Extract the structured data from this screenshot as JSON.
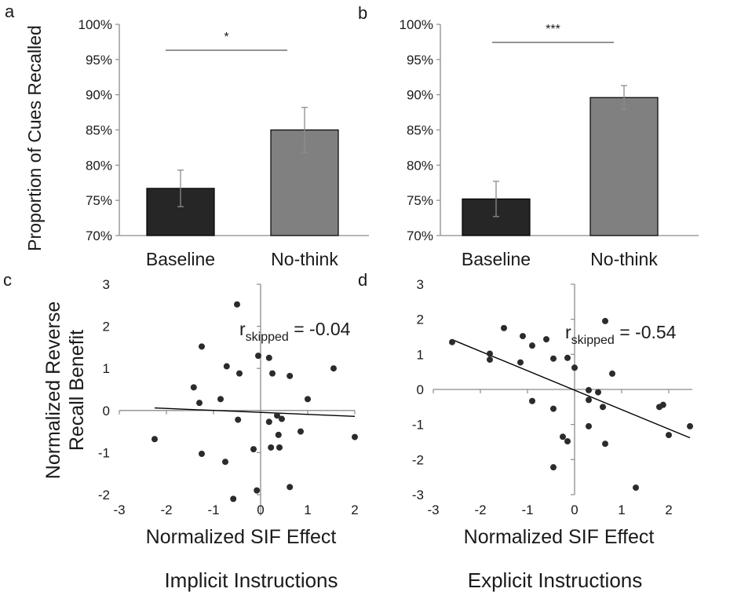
{
  "figure": {
    "ylabel_top": "Proportion of Cues Recalled",
    "ylabel_bottom_line1": "Normalized Reverse",
    "ylabel_bottom_line2": "Recall Benefit",
    "caption_left": "Implicit Instructions",
    "caption_right": "Explicit Instructions"
  },
  "chart_data": [
    {
      "panel": "a",
      "type": "bar",
      "categories": [
        "Baseline",
        "No-think"
      ],
      "values": [
        76.7,
        85.0
      ],
      "errors": [
        2.6,
        3.2
      ],
      "bar_colors": [
        "#262626",
        "#808080"
      ],
      "ylim": [
        70,
        100
      ],
      "yticks": [
        "70%",
        "75%",
        "80%",
        "85%",
        "90%",
        "95%",
        "100%"
      ],
      "ytick_values": [
        70,
        75,
        80,
        85,
        90,
        95,
        100
      ],
      "significance": "*",
      "ylabel": "Proportion of Cues Recalled"
    },
    {
      "panel": "b",
      "type": "bar",
      "categories": [
        "Baseline",
        "No-think"
      ],
      "values": [
        75.2,
        89.6
      ],
      "errors": [
        2.5,
        1.7
      ],
      "bar_colors": [
        "#262626",
        "#808080"
      ],
      "ylim": [
        70,
        100
      ],
      "yticks": [
        "70%",
        "75%",
        "80%",
        "85%",
        "90%",
        "95%",
        "100%"
      ],
      "ytick_values": [
        70,
        75,
        80,
        85,
        90,
        95,
        100
      ],
      "significance": "***"
    },
    {
      "panel": "c",
      "type": "scatter",
      "xlabel": "Normalized SIF Effect",
      "ylabel": "Normalized Reverse Recall Benefit",
      "xlim": [
        -3,
        2
      ],
      "ylim": [
        -2.5,
        3
      ],
      "xticks": [
        "-3",
        "-2",
        "-1",
        "0",
        "1",
        "2"
      ],
      "xtick_values": [
        -3,
        -2,
        -1,
        0,
        1,
        2
      ],
      "yticks": [
        "-2",
        "-1",
        "0",
        "1",
        "2",
        "3"
      ],
      "ytick_values": [
        -2,
        -1,
        0,
        1,
        2,
        3
      ],
      "stat_r": "r",
      "stat_sub": "skipped",
      "stat_value": " = -0.04",
      "fit": {
        "x": [
          -2.25,
          2.0
        ],
        "y": [
          0.06,
          -0.14
        ]
      },
      "points": [
        [
          -0.5,
          2.52
        ],
        [
          -1.25,
          1.52
        ],
        [
          -0.05,
          1.3
        ],
        [
          0.18,
          1.25
        ],
        [
          -0.72,
          1.05
        ],
        [
          -0.45,
          0.88
        ],
        [
          0.25,
          0.88
        ],
        [
          0.62,
          0.82
        ],
        [
          1.55,
          1.0
        ],
        [
          -1.42,
          0.55
        ],
        [
          -0.85,
          0.27
        ],
        [
          1.0,
          0.27
        ],
        [
          -1.3,
          0.18
        ],
        [
          0.35,
          -0.12
        ],
        [
          0.45,
          -0.2
        ],
        [
          -0.48,
          -0.22
        ],
        [
          0.18,
          -0.27
        ],
        [
          0.85,
          -0.5
        ],
        [
          0.38,
          -0.58
        ],
        [
          -2.25,
          -0.68
        ],
        [
          2.0,
          -0.63
        ],
        [
          0.22,
          -0.88
        ],
        [
          0.4,
          -0.88
        ],
        [
          -0.15,
          -0.92
        ],
        [
          -1.25,
          -1.03
        ],
        [
          -0.75,
          -1.22
        ],
        [
          -0.08,
          -1.9
        ],
        [
          0.62,
          -1.82
        ],
        [
          -0.58,
          -2.1
        ]
      ]
    },
    {
      "panel": "d",
      "type": "scatter",
      "xlabel": "Normalized SIF Effect",
      "xlim": [
        -3,
        2.5
      ],
      "ylim": [
        -3,
        3
      ],
      "xticks": [
        "-3",
        "-2",
        "-1",
        "0",
        "1",
        "2"
      ],
      "xtick_values": [
        -3,
        -2,
        -1,
        0,
        1,
        2
      ],
      "yticks": [
        "-3",
        "-2",
        "-1",
        "0",
        "1",
        "2",
        "3"
      ],
      "ytick_values": [
        -3,
        -2,
        -1,
        0,
        1,
        2,
        3
      ],
      "stat_r": "r",
      "stat_sub": "skipped",
      "stat_value": " = -0.54",
      "fit": {
        "x": [
          -2.6,
          2.45
        ],
        "y": [
          1.42,
          -1.38
        ]
      },
      "points": [
        [
          -2.6,
          1.35
        ],
        [
          -1.8,
          1.02
        ],
        [
          -1.8,
          0.85
        ],
        [
          -1.5,
          1.75
        ],
        [
          -1.1,
          1.52
        ],
        [
          -0.9,
          1.25
        ],
        [
          -0.6,
          1.43
        ],
        [
          0.65,
          1.95
        ],
        [
          -1.15,
          0.77
        ],
        [
          -0.45,
          0.88
        ],
        [
          -0.15,
          0.9
        ],
        [
          0.0,
          0.62
        ],
        [
          0.8,
          0.45
        ],
        [
          -0.9,
          -0.33
        ],
        [
          -0.45,
          -0.55
        ],
        [
          0.3,
          -0.02
        ],
        [
          0.5,
          -0.08
        ],
        [
          0.3,
          -0.3
        ],
        [
          0.6,
          -0.5
        ],
        [
          1.8,
          -0.5
        ],
        [
          1.88,
          -0.44
        ],
        [
          0.3,
          -1.05
        ],
        [
          -0.25,
          -1.35
        ],
        [
          -0.15,
          -1.48
        ],
        [
          0.65,
          -1.55
        ],
        [
          2.0,
          -1.3
        ],
        [
          2.45,
          -1.05
        ],
        [
          -0.45,
          -2.22
        ],
        [
          1.3,
          -2.8
        ]
      ]
    }
  ],
  "panel_labels": [
    "a",
    "b",
    "c",
    "d"
  ]
}
